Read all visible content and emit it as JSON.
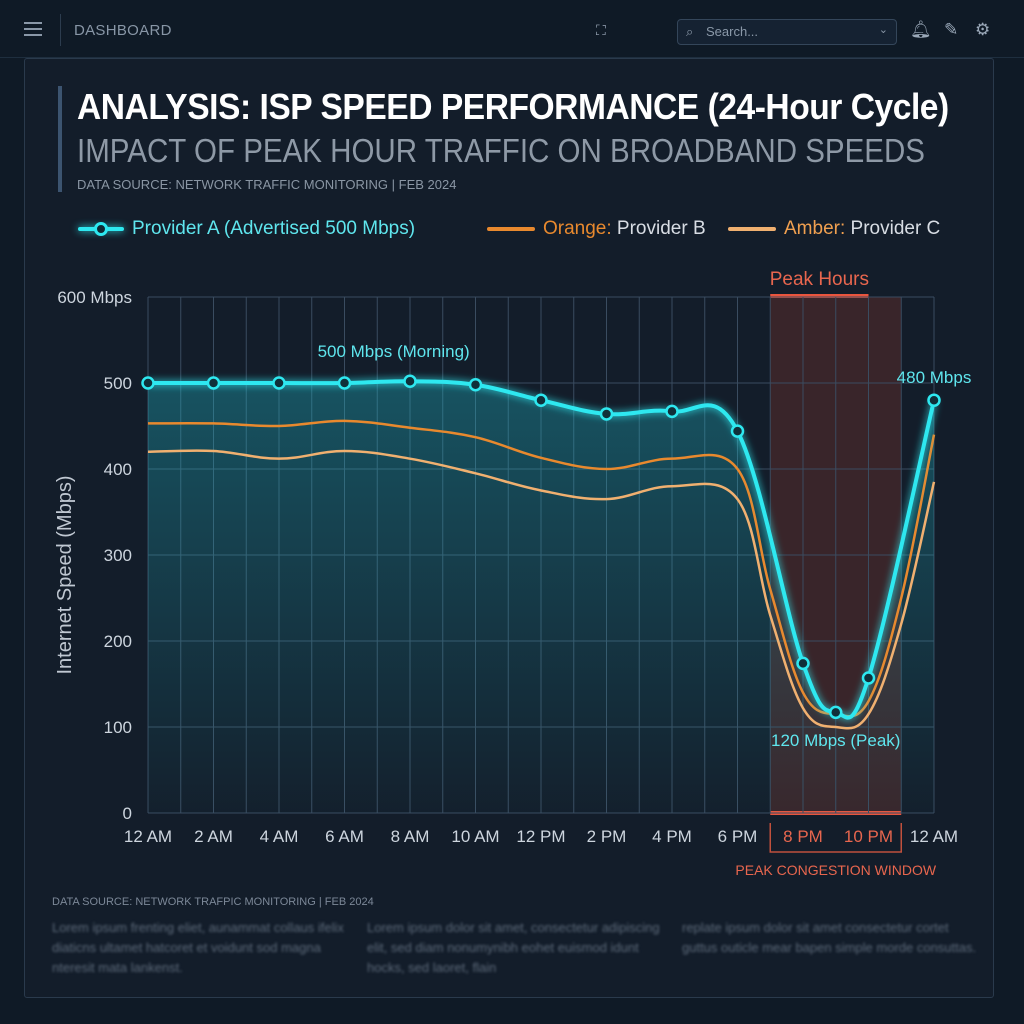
{
  "header": {
    "title": "DASHBOARD",
    "search_placeholder": "Search...",
    "icons": [
      "menu-icon",
      "scan-icon",
      "search-icon",
      "bell-icon",
      "edit-icon",
      "gear-icon"
    ]
  },
  "panel": {
    "title": "ANALYSIS: ISP SPEED PERFORMANCE (24-Hour Cycle)",
    "subtitle": "IMPACT OF PEAK HOUR TRAFFIC ON BROADBAND SPEEDS",
    "source": "DATA SOURCE: NETWORK TRAFFIC MONITORING  |  FEB 2024",
    "legend": [
      {
        "prefix": "",
        "label": "Provider A (Advertised 500 Mbps)",
        "color": "#2ee8f0"
      },
      {
        "prefix": "Orange:",
        "label": " Provider B",
        "color": "#e8892e"
      },
      {
        "prefix": "Amber:",
        "label": " Provider C",
        "color": "#f0b070"
      }
    ],
    "footer_source": "DATA SOURCE: NETWORK TRAFPIC MONITORING | FEB 2024",
    "footer_text": [
      "Lorem ipsum frenting eliet, aunammat collaus ifelix diaticns ultamet hatcoret et voidunt sod magna nteresit mata lankenst.",
      "Lorem ipsum dolor sit amet, consectetur adipiscing elit, sed diam nonumynibh eohet euismod idunt hocks, sed laoret, flain",
      "replate ipsum dolor sit amet consectetur cortet guttus outicle mear bapen simple morde consuttas."
    ]
  },
  "chart_data": {
    "type": "line",
    "ylabel": "Internet Speed (Mbps)",
    "ylim": [
      0,
      600
    ],
    "yticks": [
      {
        "v": 0,
        "label": "0"
      },
      {
        "v": 100,
        "label": "100"
      },
      {
        "v": 200,
        "label": "200"
      },
      {
        "v": 300,
        "label": "300"
      },
      {
        "v": 400,
        "label": "400"
      },
      {
        "v": 500,
        "label": "500"
      },
      {
        "v": 600,
        "label": "600 Mbps"
      }
    ],
    "xlim_hours": [
      0,
      24
    ],
    "xticks": [
      {
        "h": 0,
        "label": "12 AM"
      },
      {
        "h": 2,
        "label": "2 AM"
      },
      {
        "h": 4,
        "label": "4 AM"
      },
      {
        "h": 6,
        "label": "6 AM"
      },
      {
        "h": 8,
        "label": "8 AM"
      },
      {
        "h": 10,
        "label": "10 AM"
      },
      {
        "h": 12,
        "label": "12 PM"
      },
      {
        "h": 14,
        "label": "2 PM"
      },
      {
        "h": 16,
        "label": "4 PM"
      },
      {
        "h": 18,
        "label": "6 PM"
      },
      {
        "h": 20,
        "label": "8 PM",
        "peak": true
      },
      {
        "h": 22,
        "label": "10 PM",
        "peak": true
      },
      {
        "h": 24,
        "label": "12 AM"
      }
    ],
    "grid": true,
    "series": [
      {
        "name": "Provider A (Advertised 500 Mbps)",
        "color": "#2ee8f0",
        "markers": true,
        "x": [
          0,
          2,
          4,
          6,
          8,
          10,
          12,
          14,
          16,
          18,
          20,
          21,
          22,
          24
        ],
        "y": [
          500,
          500,
          500,
          500,
          502,
          498,
          480,
          464,
          467,
          444,
          174,
          117,
          157,
          480
        ]
      },
      {
        "name": "Provider B",
        "color": "#e8892e",
        "markers": false,
        "x": [
          0,
          2,
          4,
          6,
          8,
          10,
          12,
          14,
          16,
          18,
          19,
          20,
          21,
          22,
          23,
          24
        ],
        "y": [
          453,
          453,
          450,
          456,
          448,
          437,
          413,
          400,
          412,
          400,
          260,
          140,
          115,
          130,
          250,
          440
        ]
      },
      {
        "name": "Provider C",
        "color": "#f0b070",
        "markers": false,
        "x": [
          0,
          2,
          4,
          6,
          8,
          10,
          12,
          14,
          16,
          18,
          19,
          20,
          21,
          22,
          23,
          24
        ],
        "y": [
          420,
          421,
          412,
          421,
          412,
          395,
          375,
          365,
          380,
          365,
          230,
          122,
          100,
          115,
          220,
          385
        ]
      }
    ],
    "peak_region": {
      "label": "Peak Hours",
      "start_hour": 19,
      "end_hour": 23,
      "window_label": "PEAK CONGESTION WINDOW",
      "color": "#e8553e"
    },
    "annotations": [
      {
        "text": "500 Mbps (Morning)",
        "h": 7.5,
        "v": 530
      },
      {
        "text": "480 Mbps",
        "h": 24,
        "v": 500
      },
      {
        "text": "120 Mbps (Peak)",
        "h": 21,
        "v": 78
      }
    ]
  }
}
